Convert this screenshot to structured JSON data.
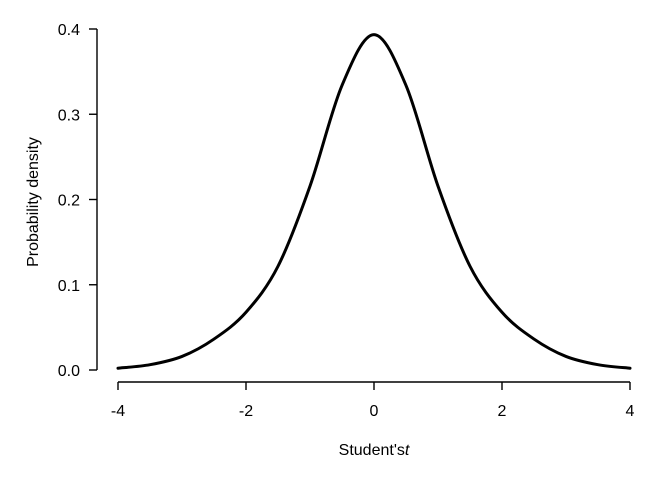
{
  "chart_data": {
    "type": "line",
    "title": "",
    "xlabel": "Student's",
    "xlabel_italic": "t",
    "ylabel": "Probability density",
    "xlim": [
      -4,
      4
    ],
    "ylim": [
      0,
      0.4
    ],
    "x_ticks": [
      -4,
      -2,
      0,
      2,
      4
    ],
    "x_tick_labels": [
      "-4",
      "-2",
      "0",
      "2",
      "4"
    ],
    "y_ticks": [
      0,
      0.1,
      0.2,
      0.3,
      0.4
    ],
    "y_tick_labels": [
      "0.0",
      "0.1",
      "0.2",
      "0.3",
      "0.4"
    ],
    "grid": false,
    "legend": "none",
    "line_color": "#000000",
    "series": [
      {
        "x": [
          -4,
          -3.5,
          -3,
          -2.5,
          -2,
          -1.5,
          -1,
          -0.5,
          0,
          0.5,
          1,
          1.5,
          2,
          2.5,
          3,
          3.5,
          4
        ],
        "y": [
          0.0021,
          0.0062,
          0.0159,
          0.0363,
          0.0677,
          0.1217,
          0.2157,
          0.3338,
          0.3934,
          0.3338,
          0.2157,
          0.1217,
          0.0677,
          0.0363,
          0.0159,
          0.0062,
          0.0021
        ]
      }
    ]
  }
}
